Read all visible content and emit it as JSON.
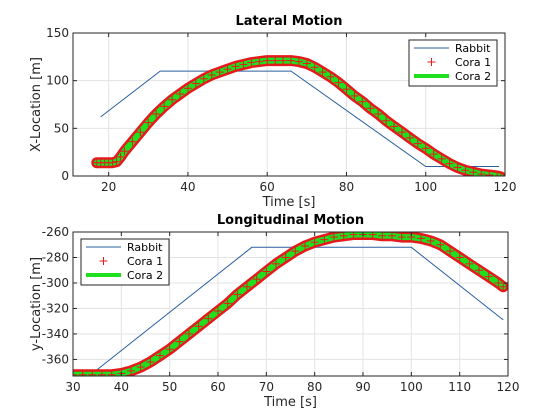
{
  "chart_data": [
    {
      "type": "line",
      "title": "Lateral Motion",
      "xlabel": "Time [s]",
      "ylabel": "X-Location [m]",
      "xlim": [
        11,
        120
      ],
      "ylim": [
        0,
        150
      ],
      "xticks": [
        20,
        40,
        60,
        80,
        100,
        120
      ],
      "yticks": [
        0,
        50,
        100,
        150
      ],
      "xtick_labels": [
        "20",
        "40",
        "60",
        "80",
        "100",
        "120"
      ],
      "ytick_labels": [
        "0",
        "50",
        "100",
        "150"
      ],
      "grid": true,
      "legend": "top-right",
      "series": [
        {
          "name": "Rabbit",
          "color": "#2a5f9e",
          "x": [
            18,
            33,
            66,
            100,
            118.5
          ],
          "y": [
            62,
            110,
            110,
            10,
            10
          ]
        },
        {
          "name": "Cora 1",
          "color": "#e41a1c",
          "marker": "+",
          "x": [
            17,
            18,
            19,
            20,
            21,
            22,
            23,
            24,
            26,
            28,
            30,
            32,
            34,
            36,
            38,
            40,
            42,
            44,
            46,
            48,
            50,
            52,
            54,
            56,
            58,
            60,
            62,
            64,
            66,
            68,
            70,
            72,
            74,
            76,
            78,
            80,
            82,
            84,
            86,
            88,
            90,
            92,
            94,
            96,
            98,
            100,
            102,
            104,
            106,
            108,
            110,
            112,
            114,
            116,
            118,
            119
          ],
          "y": [
            14,
            14,
            14,
            14,
            14,
            15,
            20,
            26,
            36,
            46,
            56,
            65,
            73,
            80,
            86,
            92,
            97,
            102,
            106,
            109,
            112,
            115,
            117,
            119,
            120,
            121,
            121,
            121,
            121,
            120,
            118,
            114,
            109,
            104,
            98,
            91,
            84,
            78,
            71,
            65,
            58,
            52,
            46,
            40,
            34,
            29,
            23,
            18,
            13,
            9,
            6,
            4,
            2,
            1,
            0,
            -1
          ]
        },
        {
          "name": "Cora 2",
          "color": "#1fe01f",
          "x": [
            17,
            18,
            19,
            20,
            21,
            22,
            23,
            24,
            26,
            28,
            30,
            32,
            34,
            36,
            38,
            40,
            42,
            44,
            46,
            48,
            50,
            52,
            54,
            56,
            58,
            60,
            62,
            64,
            66,
            68,
            70,
            72,
            74,
            76,
            78,
            80,
            82,
            84,
            86,
            88,
            90,
            92,
            94,
            96,
            98,
            100,
            102,
            104,
            106,
            108,
            110,
            112,
            114,
            116,
            118,
            119
          ],
          "y": [
            14,
            14,
            14,
            14,
            14,
            15,
            20,
            26,
            36,
            46,
            56,
            65,
            73,
            80,
            86,
            92,
            97,
            102,
            106,
            109,
            112,
            115,
            117,
            119,
            120,
            121,
            121,
            121,
            121,
            120,
            118,
            114,
            109,
            104,
            98,
            91,
            84,
            78,
            71,
            65,
            58,
            52,
            46,
            40,
            34,
            29,
            23,
            18,
            13,
            9,
            6,
            4,
            2,
            1,
            0,
            -1
          ]
        }
      ]
    },
    {
      "type": "line",
      "title": "Longitudinal Motion",
      "xlabel": "Time [s]",
      "ylabel": "y-Location [m]",
      "xlim": [
        30,
        120
      ],
      "ylim": [
        -373,
        -260
      ],
      "xticks": [
        30,
        40,
        50,
        60,
        70,
        80,
        90,
        100,
        110,
        120
      ],
      "yticks": [
        -360,
        -340,
        -320,
        -300,
        -280,
        -260
      ],
      "xtick_labels": [
        "30",
        "40",
        "50",
        "60",
        "70",
        "80",
        "90",
        "100",
        "110",
        "120"
      ],
      "ytick_labels": [
        "-360",
        "-340",
        "-320",
        "-300",
        "-280",
        "-260"
      ],
      "grid": true,
      "legend": "top-left",
      "series": [
        {
          "name": "Rabbit",
          "color": "#2a5f9e",
          "x": [
            34,
            67,
            100,
            119
          ],
          "y": [
            -371,
            -272,
            -272,
            -329
          ]
        },
        {
          "name": "Cora 1",
          "color": "#e41a1c",
          "marker": "+",
          "x": [
            30,
            32,
            34,
            36,
            38,
            40,
            42,
            44,
            46,
            48,
            50,
            52,
            54,
            56,
            58,
            60,
            62,
            64,
            66,
            68,
            70,
            72,
            74,
            76,
            78,
            80,
            82,
            84,
            86,
            88,
            90,
            92,
            94,
            96,
            98,
            100,
            102,
            104,
            106,
            108,
            110,
            112,
            114,
            116,
            118,
            119
          ],
          "y": [
            -372,
            -372,
            -372,
            -372,
            -372,
            -371,
            -369,
            -366,
            -362,
            -357,
            -352,
            -346,
            -340,
            -334,
            -328,
            -322,
            -316,
            -309,
            -303,
            -297,
            -291,
            -285,
            -280,
            -275,
            -271,
            -268,
            -266,
            -264,
            -263,
            -262,
            -262,
            -262,
            -263,
            -263,
            -264,
            -264,
            -265,
            -267,
            -270,
            -275,
            -280,
            -285,
            -290,
            -295,
            -300,
            -303
          ]
        },
        {
          "name": "Cora 2",
          "color": "#1fe01f",
          "x": [
            30,
            32,
            34,
            36,
            38,
            40,
            42,
            44,
            46,
            48,
            50,
            52,
            54,
            56,
            58,
            60,
            62,
            64,
            66,
            68,
            70,
            72,
            74,
            76,
            78,
            80,
            82,
            84,
            86,
            88,
            90,
            92,
            94,
            96,
            98,
            100,
            102,
            104,
            106,
            108,
            110,
            112,
            114,
            116,
            118,
            119
          ],
          "y": [
            -372,
            -372,
            -372,
            -372,
            -372,
            -371,
            -369,
            -366,
            -362,
            -357,
            -352,
            -346,
            -340,
            -334,
            -328,
            -322,
            -316,
            -309,
            -303,
            -297,
            -291,
            -285,
            -280,
            -275,
            -271,
            -268,
            -266,
            -264,
            -263,
            -262,
            -262,
            -262,
            -263,
            -263,
            -264,
            -264,
            -265,
            -267,
            -270,
            -275,
            -280,
            -285,
            -290,
            -295,
            -300,
            -303
          ]
        }
      ]
    }
  ]
}
